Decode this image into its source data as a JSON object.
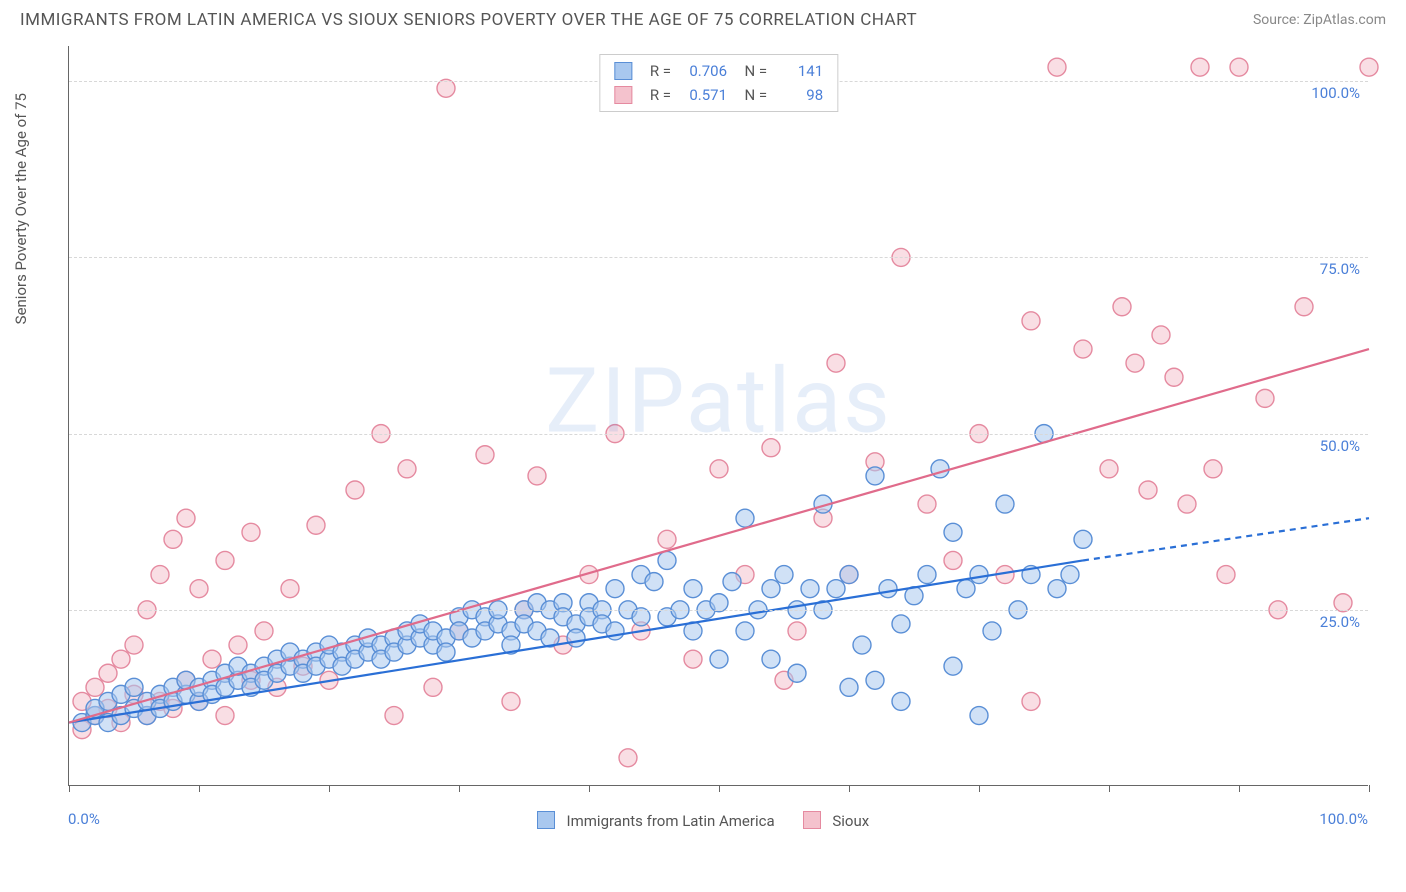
{
  "title": "IMMIGRANTS FROM LATIN AMERICA VS SIOUX SENIORS POVERTY OVER THE AGE OF 75 CORRELATION CHART",
  "source": "Source: ZipAtlas.com",
  "watermark": "ZIPatlas",
  "yaxis_label": "Seniors Poverty Over the Age of 75",
  "chart": {
    "type": "scatter",
    "xlim": [
      0,
      100
    ],
    "ylim": [
      0,
      105
    ],
    "xlim_labels": [
      "0.0%",
      "100.0%"
    ],
    "ytick_values": [
      25,
      50,
      75,
      100
    ],
    "ytick_labels": [
      "25.0%",
      "50.0%",
      "75.0%",
      "100.0%"
    ],
    "xtick_values": [
      0,
      10,
      20,
      30,
      40,
      50,
      60,
      70,
      80,
      90,
      100
    ],
    "background_color": "#ffffff",
    "grid_color": "#d8d8d8",
    "marker_radius": 9,
    "marker_opacity": 0.55,
    "line_width": 2.2,
    "series": [
      {
        "name": "Immigrants from Latin America",
        "color_fill": "#a9c8ef",
        "color_stroke": "#5a8fd6",
        "line_color": "#2a6fd6",
        "R": "0.706",
        "N": "141",
        "regression": {
          "x1": 0,
          "y1": 9,
          "x2": 78,
          "y2": 32,
          "dash_x2": 100,
          "dash_y2": 38
        },
        "points": [
          [
            1,
            9
          ],
          [
            2,
            10
          ],
          [
            2,
            11
          ],
          [
            3,
            9
          ],
          [
            3,
            12
          ],
          [
            4,
            10
          ],
          [
            4,
            13
          ],
          [
            5,
            11
          ],
          [
            5,
            14
          ],
          [
            6,
            10
          ],
          [
            6,
            12
          ],
          [
            7,
            13
          ],
          [
            7,
            11
          ],
          [
            8,
            14
          ],
          [
            8,
            12
          ],
          [
            9,
            13
          ],
          [
            9,
            15
          ],
          [
            10,
            12
          ],
          [
            10,
            14
          ],
          [
            11,
            15
          ],
          [
            11,
            13
          ],
          [
            12,
            16
          ],
          [
            12,
            14
          ],
          [
            13,
            15
          ],
          [
            13,
            17
          ],
          [
            14,
            16
          ],
          [
            14,
            14
          ],
          [
            15,
            17
          ],
          [
            15,
            15
          ],
          [
            16,
            18
          ],
          [
            16,
            16
          ],
          [
            17,
            17
          ],
          [
            17,
            19
          ],
          [
            18,
            18
          ],
          [
            18,
            16
          ],
          [
            19,
            19
          ],
          [
            19,
            17
          ],
          [
            20,
            18
          ],
          [
            20,
            20
          ],
          [
            21,
            19
          ],
          [
            21,
            17
          ],
          [
            22,
            20
          ],
          [
            22,
            18
          ],
          [
            23,
            19
          ],
          [
            23,
            21
          ],
          [
            24,
            20
          ],
          [
            24,
            18
          ],
          [
            25,
            21
          ],
          [
            25,
            19
          ],
          [
            26,
            20
          ],
          [
            26,
            22
          ],
          [
            27,
            21
          ],
          [
            27,
            23
          ],
          [
            28,
            20
          ],
          [
            28,
            22
          ],
          [
            29,
            21
          ],
          [
            29,
            19
          ],
          [
            30,
            24
          ],
          [
            30,
            22
          ],
          [
            31,
            21
          ],
          [
            31,
            25
          ],
          [
            32,
            24
          ],
          [
            32,
            22
          ],
          [
            33,
            23
          ],
          [
            33,
            25
          ],
          [
            34,
            22
          ],
          [
            34,
            20
          ],
          [
            35,
            25
          ],
          [
            35,
            23
          ],
          [
            36,
            26
          ],
          [
            36,
            22
          ],
          [
            37,
            25
          ],
          [
            37,
            21
          ],
          [
            38,
            26
          ],
          [
            38,
            24
          ],
          [
            39,
            23
          ],
          [
            39,
            21
          ],
          [
            40,
            26
          ],
          [
            40,
            24
          ],
          [
            41,
            25
          ],
          [
            41,
            23
          ],
          [
            42,
            22
          ],
          [
            42,
            28
          ],
          [
            43,
            25
          ],
          [
            44,
            24
          ],
          [
            44,
            30
          ],
          [
            45,
            29
          ],
          [
            46,
            24
          ],
          [
            46,
            32
          ],
          [
            47,
            25
          ],
          [
            48,
            22
          ],
          [
            48,
            28
          ],
          [
            49,
            25
          ],
          [
            50,
            26
          ],
          [
            50,
            18
          ],
          [
            51,
            29
          ],
          [
            52,
            22
          ],
          [
            52,
            38
          ],
          [
            53,
            25
          ],
          [
            54,
            28
          ],
          [
            54,
            18
          ],
          [
            55,
            30
          ],
          [
            56,
            25
          ],
          [
            56,
            16
          ],
          [
            57,
            28
          ],
          [
            58,
            25
          ],
          [
            58,
            40
          ],
          [
            59,
            28
          ],
          [
            60,
            14
          ],
          [
            60,
            30
          ],
          [
            61,
            20
          ],
          [
            62,
            15
          ],
          [
            62,
            44
          ],
          [
            63,
            28
          ],
          [
            64,
            23
          ],
          [
            64,
            12
          ],
          [
            65,
            27
          ],
          [
            66,
            30
          ],
          [
            67,
            45
          ],
          [
            68,
            17
          ],
          [
            68,
            36
          ],
          [
            69,
            28
          ],
          [
            70,
            30
          ],
          [
            70,
            10
          ],
          [
            71,
            22
          ],
          [
            72,
            40
          ],
          [
            73,
            25
          ],
          [
            74,
            30
          ],
          [
            75,
            50
          ],
          [
            76,
            28
          ],
          [
            77,
            30
          ],
          [
            78,
            35
          ]
        ]
      },
      {
        "name": "Sioux",
        "color_fill": "#f4c2cd",
        "color_stroke": "#e58aa0",
        "line_color": "#e06b8b",
        "R": "0.571",
        "N": "98",
        "regression": {
          "x1": 0,
          "y1": 9,
          "x2": 100,
          "y2": 62
        },
        "points": [
          [
            1,
            8
          ],
          [
            1,
            12
          ],
          [
            2,
            10
          ],
          [
            2,
            14
          ],
          [
            3,
            11
          ],
          [
            3,
            16
          ],
          [
            4,
            9
          ],
          [
            4,
            18
          ],
          [
            5,
            13
          ],
          [
            5,
            20
          ],
          [
            6,
            10
          ],
          [
            6,
            25
          ],
          [
            7,
            12
          ],
          [
            7,
            30
          ],
          [
            8,
            11
          ],
          [
            8,
            35
          ],
          [
            9,
            15
          ],
          [
            9,
            38
          ],
          [
            10,
            12
          ],
          [
            10,
            28
          ],
          [
            11,
            18
          ],
          [
            12,
            10
          ],
          [
            12,
            32
          ],
          [
            13,
            20
          ],
          [
            14,
            15
          ],
          [
            14,
            36
          ],
          [
            15,
            22
          ],
          [
            16,
            14
          ],
          [
            17,
            28
          ],
          [
            18,
            17
          ],
          [
            19,
            37
          ],
          [
            20,
            15
          ],
          [
            22,
            42
          ],
          [
            24,
            50
          ],
          [
            25,
            10
          ],
          [
            26,
            45
          ],
          [
            28,
            14
          ],
          [
            29,
            99
          ],
          [
            30,
            22
          ],
          [
            32,
            47
          ],
          [
            34,
            12
          ],
          [
            35,
            25
          ],
          [
            36,
            44
          ],
          [
            38,
            20
          ],
          [
            40,
            30
          ],
          [
            42,
            50
          ],
          [
            43,
            4
          ],
          [
            44,
            22
          ],
          [
            46,
            35
          ],
          [
            48,
            18
          ],
          [
            50,
            45
          ],
          [
            52,
            30
          ],
          [
            54,
            48
          ],
          [
            55,
            15
          ],
          [
            56,
            22
          ],
          [
            58,
            38
          ],
          [
            59,
            60
          ],
          [
            60,
            30
          ],
          [
            62,
            46
          ],
          [
            64,
            75
          ],
          [
            66,
            40
          ],
          [
            68,
            32
          ],
          [
            70,
            50
          ],
          [
            72,
            30
          ],
          [
            74,
            12
          ],
          [
            74,
            66
          ],
          [
            76,
            102
          ],
          [
            78,
            62
          ],
          [
            80,
            45
          ],
          [
            81,
            68
          ],
          [
            82,
            60
          ],
          [
            83,
            42
          ],
          [
            84,
            64
          ],
          [
            85,
            58
          ],
          [
            86,
            40
          ],
          [
            87,
            102
          ],
          [
            88,
            45
          ],
          [
            89,
            30
          ],
          [
            90,
            102
          ],
          [
            92,
            55
          ],
          [
            93,
            25
          ],
          [
            95,
            68
          ],
          [
            98,
            26
          ],
          [
            100,
            102
          ]
        ]
      }
    ]
  },
  "bottom_legend": {
    "items": [
      {
        "label": "Immigrants from Latin America",
        "fill": "#a9c8ef",
        "stroke": "#5a8fd6"
      },
      {
        "label": "Sioux",
        "fill": "#f4c2cd",
        "stroke": "#e58aa0"
      }
    ]
  }
}
